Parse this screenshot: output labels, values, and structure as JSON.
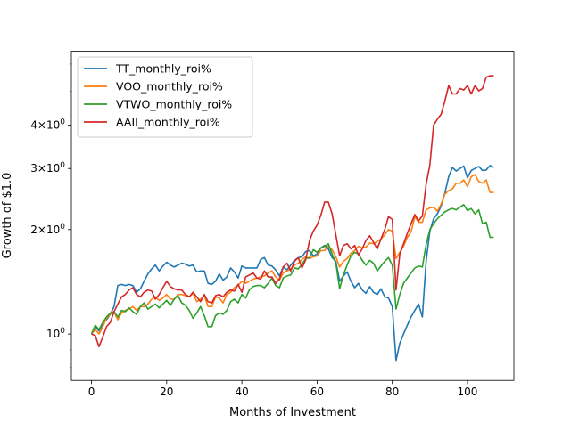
{
  "chart_data": {
    "type": "line",
    "xlabel": "Months of Investment",
    "ylabel": "Growth of $1.0",
    "xlim": [
      -5.35,
      112.35
    ],
    "ylim": [
      0.735,
      6.53
    ],
    "yscale": "log",
    "xticks": [
      0,
      20,
      40,
      60,
      80,
      100
    ],
    "yticks": [
      {
        "value": 1,
        "label": "10^0"
      },
      {
        "value": 2,
        "label": "2×10^0"
      },
      {
        "value": 3,
        "label": "3×10^0"
      },
      {
        "value": 4,
        "label": "4×10^0"
      }
    ],
    "y_minor_ticks": [
      0.8,
      0.9,
      5,
      6
    ],
    "legend_position": "upper-left",
    "grid": false,
    "series": [
      {
        "name": "TT_monthly_roi%",
        "color": "#1f77b4",
        "values": [
          1.0,
          1.05,
          1.02,
          1.07,
          1.1,
          1.14,
          1.2,
          1.38,
          1.39,
          1.38,
          1.39,
          1.38,
          1.32,
          1.35,
          1.42,
          1.49,
          1.54,
          1.58,
          1.52,
          1.57,
          1.61,
          1.58,
          1.56,
          1.58,
          1.6,
          1.59,
          1.57,
          1.58,
          1.51,
          1.52,
          1.52,
          1.4,
          1.39,
          1.42,
          1.49,
          1.43,
          1.46,
          1.55,
          1.51,
          1.45,
          1.57,
          1.55,
          1.55,
          1.55,
          1.55,
          1.64,
          1.66,
          1.58,
          1.57,
          1.53,
          1.47,
          1.56,
          1.53,
          1.58,
          1.63,
          1.66,
          1.67,
          1.73,
          1.74,
          1.68,
          1.7,
          1.77,
          1.8,
          1.76,
          1.66,
          1.62,
          1.42,
          1.47,
          1.51,
          1.42,
          1.36,
          1.4,
          1.34,
          1.31,
          1.37,
          1.32,
          1.3,
          1.35,
          1.28,
          1.27,
          1.2,
          0.84,
          0.94,
          1.0,
          1.06,
          1.12,
          1.17,
          1.22,
          1.12,
          1.62,
          1.98,
          2.15,
          2.22,
          2.34,
          2.55,
          2.84,
          3.02,
          2.95,
          3.0,
          3.05,
          2.82,
          2.96,
          3.0,
          3.04,
          2.96,
          2.97,
          3.06,
          3.02
        ]
      },
      {
        "name": "VOO_monthly_roi%",
        "color": "#ff7f0e",
        "values": [
          1.0,
          1.03,
          1.0,
          1.05,
          1.11,
          1.14,
          1.16,
          1.1,
          1.15,
          1.17,
          1.18,
          1.2,
          1.17,
          1.2,
          1.2,
          1.22,
          1.26,
          1.28,
          1.25,
          1.27,
          1.3,
          1.26,
          1.26,
          1.3,
          1.3,
          1.29,
          1.28,
          1.31,
          1.24,
          1.26,
          1.29,
          1.2,
          1.2,
          1.28,
          1.27,
          1.23,
          1.3,
          1.32,
          1.36,
          1.38,
          1.42,
          1.4,
          1.42,
          1.44,
          1.45,
          1.46,
          1.47,
          1.5,
          1.52,
          1.46,
          1.43,
          1.5,
          1.52,
          1.54,
          1.58,
          1.6,
          1.64,
          1.67,
          1.65,
          1.67,
          1.68,
          1.74,
          1.74,
          1.79,
          1.75,
          1.67,
          1.56,
          1.62,
          1.65,
          1.71,
          1.74,
          1.79,
          1.77,
          1.78,
          1.83,
          1.82,
          1.85,
          1.88,
          1.93,
          2.0,
          1.98,
          1.65,
          1.72,
          1.79,
          1.9,
          1.97,
          2.18,
          2.1,
          2.1,
          2.28,
          2.31,
          2.32,
          2.26,
          2.37,
          2.53,
          2.59,
          2.62,
          2.72,
          2.72,
          2.78,
          2.66,
          2.84,
          2.88,
          2.75,
          2.72,
          2.78,
          2.56,
          2.56
        ]
      },
      {
        "name": "VTWO_monthly_roi%",
        "color": "#2ca02c",
        "values": [
          1.0,
          1.06,
          1.03,
          1.08,
          1.12,
          1.15,
          1.16,
          1.12,
          1.17,
          1.16,
          1.19,
          1.16,
          1.14,
          1.2,
          1.23,
          1.18,
          1.2,
          1.22,
          1.19,
          1.22,
          1.25,
          1.21,
          1.26,
          1.29,
          1.23,
          1.21,
          1.17,
          1.11,
          1.15,
          1.2,
          1.13,
          1.05,
          1.05,
          1.13,
          1.15,
          1.14,
          1.17,
          1.24,
          1.26,
          1.23,
          1.3,
          1.27,
          1.34,
          1.37,
          1.38,
          1.38,
          1.36,
          1.4,
          1.45,
          1.38,
          1.36,
          1.45,
          1.47,
          1.48,
          1.55,
          1.54,
          1.59,
          1.65,
          1.66,
          1.75,
          1.72,
          1.77,
          1.79,
          1.82,
          1.7,
          1.6,
          1.35,
          1.48,
          1.58,
          1.68,
          1.72,
          1.7,
          1.63,
          1.58,
          1.63,
          1.6,
          1.52,
          1.57,
          1.62,
          1.66,
          1.58,
          1.18,
          1.3,
          1.4,
          1.45,
          1.5,
          1.55,
          1.57,
          1.56,
          1.81,
          2.0,
          2.08,
          2.15,
          2.2,
          2.25,
          2.28,
          2.3,
          2.28,
          2.32,
          2.36,
          2.27,
          2.3,
          2.22,
          2.28,
          2.08,
          2.1,
          1.9,
          1.9
        ]
      },
      {
        "name": "AAII_monthly_roi%",
        "color": "#d62728",
        "values": [
          1.0,
          0.99,
          0.92,
          0.98,
          1.05,
          1.08,
          1.16,
          1.22,
          1.28,
          1.3,
          1.34,
          1.36,
          1.3,
          1.28,
          1.32,
          1.34,
          1.33,
          1.26,
          1.3,
          1.36,
          1.42,
          1.37,
          1.35,
          1.34,
          1.34,
          1.3,
          1.28,
          1.32,
          1.28,
          1.24,
          1.3,
          1.24,
          1.23,
          1.29,
          1.3,
          1.28,
          1.32,
          1.34,
          1.33,
          1.39,
          1.32,
          1.46,
          1.48,
          1.5,
          1.45,
          1.44,
          1.52,
          1.46,
          1.46,
          1.4,
          1.44,
          1.56,
          1.6,
          1.52,
          1.62,
          1.66,
          1.55,
          1.64,
          1.86,
          1.98,
          2.06,
          2.2,
          2.4,
          2.4,
          2.22,
          1.93,
          1.68,
          1.8,
          1.82,
          1.76,
          1.8,
          1.69,
          1.76,
          1.86,
          1.92,
          1.84,
          1.76,
          1.88,
          2.0,
          2.18,
          2.14,
          1.34,
          1.7,
          1.82,
          1.95,
          2.08,
          2.21,
          2.12,
          2.19,
          2.7,
          3.07,
          4.0,
          4.16,
          4.3,
          4.7,
          5.2,
          4.92,
          4.92,
          5.1,
          5.05,
          5.2,
          4.92,
          5.2,
          5.02,
          5.1,
          5.5,
          5.55,
          5.55
        ]
      }
    ]
  }
}
